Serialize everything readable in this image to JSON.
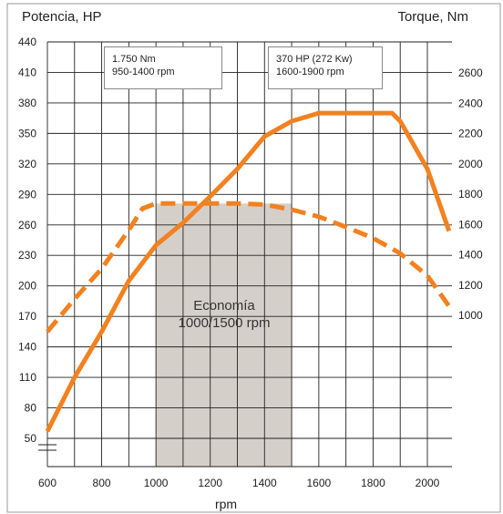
{
  "chart_data": {
    "type": "line",
    "left_axis_title": "Potencia, HP",
    "right_axis_title": "Torque, Nm",
    "xlabel": "rpm",
    "xlim": [
      600,
      2100
    ],
    "x_ticks": [
      600,
      800,
      1000,
      1200,
      1400,
      1600,
      1800,
      2000
    ],
    "ylim_left": [
      35,
      440
    ],
    "y_ticks_left": [
      50,
      80,
      110,
      140,
      170,
      200,
      230,
      260,
      290,
      320,
      350,
      380,
      410,
      440
    ],
    "y_ticks_right": [
      1000,
      1200,
      1400,
      1600,
      1800,
      2000,
      2200,
      2400,
      2600
    ],
    "grid": true,
    "series": [
      {
        "axis": "left",
        "style": "solid",
        "color": "#f28120",
        "points": [
          [
            600,
            57
          ],
          [
            700,
            110
          ],
          [
            800,
            155
          ],
          [
            900,
            205
          ],
          [
            1000,
            240
          ],
          [
            1100,
            262
          ],
          [
            1200,
            288
          ],
          [
            1300,
            315
          ],
          [
            1400,
            347
          ],
          [
            1500,
            362
          ],
          [
            1600,
            370
          ],
          [
            1700,
            370
          ],
          [
            1800,
            370
          ],
          [
            1870,
            370
          ],
          [
            1900,
            362
          ],
          [
            2000,
            315
          ],
          [
            2080,
            254
          ]
        ]
      },
      {
        "axis": "left",
        "style": "dashed",
        "color": "#f28120",
        "points": [
          [
            600,
            155
          ],
          [
            700,
            187
          ],
          [
            800,
            217
          ],
          [
            900,
            255
          ],
          [
            950,
            276
          ],
          [
            1000,
            281
          ],
          [
            1100,
            281
          ],
          [
            1200,
            281
          ],
          [
            1300,
            281
          ],
          [
            1400,
            280
          ],
          [
            1500,
            275
          ],
          [
            1600,
            268
          ],
          [
            1700,
            258
          ],
          [
            1800,
            247
          ],
          [
            1900,
            232
          ],
          [
            2000,
            210
          ],
          [
            2080,
            180
          ]
        ]
      }
    ],
    "shaded_region": {
      "x": [
        1000,
        1500
      ],
      "color": "#d5cfca"
    },
    "annotations": {
      "torque_line1": "1.750 Nm",
      "torque_line2": "950-1400 rpm",
      "power_line1": "370 HP (272 Kw)",
      "power_line2": "1600-1900 rpm",
      "economy_line1": "Economía",
      "economy_line2": "1000/1500 rpm"
    }
  }
}
